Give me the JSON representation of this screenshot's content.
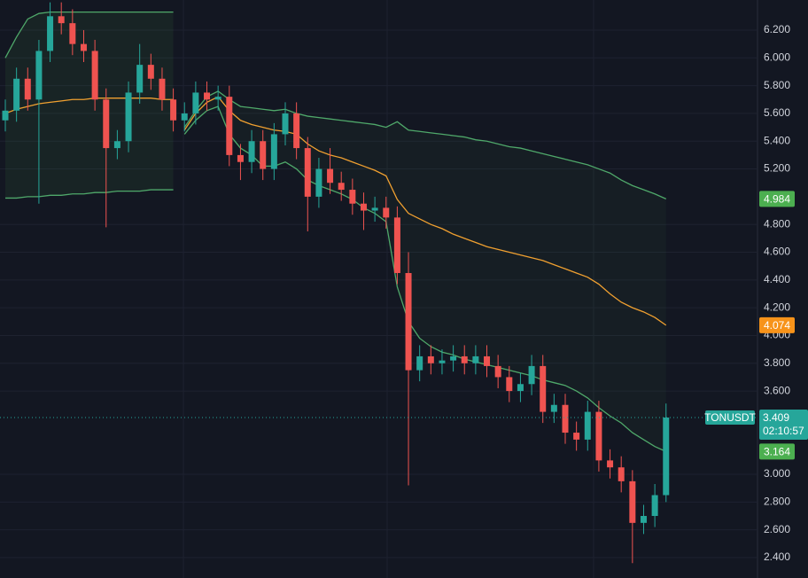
{
  "chart_data": {
    "type": "candlestick",
    "symbol": "TONUSDT",
    "last_price": 3.409,
    "countdown": "02:10:57",
    "last_color": "#26a69a",
    "up_color": "#26a69a",
    "down_color": "#ef5350",
    "open": [
      5.55,
      5.62,
      5.85,
      5.7,
      6.05,
      6.3,
      6.25,
      6.1,
      6.05,
      5.7,
      5.35,
      5.4,
      5.75,
      5.95,
      5.85,
      5.7,
      5.55,
      5.6,
      5.75,
      5.7,
      5.72,
      5.3,
      5.25,
      5.4,
      5.2,
      5.45,
      5.6,
      5.35,
      5.0,
      5.2,
      5.1,
      5.05,
      4.95,
      4.9,
      4.92,
      4.85,
      4.45,
      3.75,
      3.85,
      3.8,
      3.82,
      3.85,
      3.8,
      3.85,
      3.78,
      3.7,
      3.6,
      3.65,
      3.78,
      3.45,
      3.5,
      3.3,
      3.25,
      3.45,
      3.1,
      3.05,
      2.95,
      2.65,
      2.7,
      2.85
    ],
    "high": [
      5.7,
      5.93,
      5.93,
      6.13,
      6.4,
      6.4,
      6.35,
      6.2,
      6.13,
      5.78,
      5.48,
      5.83,
      6.1,
      6.03,
      5.93,
      5.78,
      5.68,
      5.83,
      5.83,
      5.8,
      5.8,
      5.38,
      5.48,
      5.48,
      5.53,
      5.68,
      5.68,
      5.43,
      5.28,
      5.35,
      5.18,
      5.13,
      5.03,
      5.0,
      5.0,
      4.93,
      4.6,
      3.93,
      3.93,
      3.9,
      3.93,
      3.93,
      3.93,
      3.93,
      3.86,
      3.78,
      3.73,
      3.86,
      3.86,
      3.58,
      3.58,
      3.38,
      3.53,
      3.53,
      3.18,
      3.13,
      3.03,
      2.78,
      2.93,
      3.51
    ],
    "low": [
      5.47,
      5.54,
      5.62,
      4.95,
      5.97,
      6.17,
      6.02,
      5.97,
      5.62,
      4.78,
      5.27,
      5.32,
      5.67,
      5.77,
      5.62,
      5.47,
      5.47,
      5.52,
      5.62,
      5.62,
      5.22,
      5.12,
      5.17,
      5.12,
      5.12,
      5.37,
      5.27,
      4.75,
      4.92,
      5.02,
      4.97,
      4.87,
      4.76,
      4.82,
      4.77,
      4.37,
      2.92,
      3.67,
      3.72,
      3.72,
      3.74,
      3.72,
      3.72,
      3.7,
      3.62,
      3.52,
      3.52,
      3.57,
      3.37,
      3.37,
      3.22,
      3.17,
      3.17,
      3.02,
      2.97,
      2.87,
      2.36,
      2.57,
      2.62,
      2.8
    ],
    "close": [
      5.62,
      5.85,
      5.7,
      6.05,
      6.3,
      6.25,
      6.1,
      6.05,
      5.7,
      5.35,
      5.4,
      5.75,
      5.95,
      5.85,
      5.7,
      5.55,
      5.6,
      5.75,
      5.7,
      5.72,
      5.3,
      5.25,
      5.4,
      5.2,
      5.45,
      5.6,
      5.35,
      5.0,
      5.2,
      5.1,
      5.05,
      4.95,
      4.9,
      4.92,
      4.85,
      4.45,
      3.75,
      3.85,
      3.8,
      3.82,
      3.85,
      3.8,
      3.85,
      3.78,
      3.7,
      3.6,
      3.65,
      3.78,
      3.45,
      3.5,
      3.3,
      3.25,
      3.45,
      3.1,
      3.05,
      2.95,
      2.65,
      2.7,
      2.85,
      3.409
    ],
    "bands": [
      {
        "upper": {
          "color": "#4fa86a",
          "values": [
            6.0,
            6.15,
            6.28,
            6.32,
            6.33,
            6.33,
            6.33,
            6.33,
            6.33,
            6.33,
            6.33,
            6.33,
            6.33,
            6.33,
            6.33,
            6.33,
            null,
            null,
            null,
            null,
            null,
            null,
            null,
            null,
            null,
            null,
            null,
            null,
            null,
            null,
            null,
            null,
            null,
            null,
            null,
            null,
            null,
            null,
            null,
            null,
            null,
            null,
            null,
            null,
            null,
            null,
            null,
            null,
            null,
            null,
            null,
            null,
            null,
            null,
            null,
            null,
            null,
            null,
            null,
            null
          ]
        },
        "middle": {
          "color": "#f0a030",
          "values": [
            5.6,
            5.63,
            5.65,
            5.67,
            5.68,
            5.69,
            5.7,
            5.7,
            5.71,
            5.71,
            5.71,
            5.71,
            5.71,
            5.71,
            5.7,
            5.7,
            null,
            null,
            null,
            null,
            null,
            null,
            null,
            null,
            null,
            null,
            null,
            null,
            null,
            null,
            null,
            null,
            null,
            null,
            null,
            null,
            null,
            null,
            null,
            null,
            null,
            null,
            null,
            null,
            null,
            null,
            null,
            null,
            null,
            null,
            null,
            null,
            null,
            null,
            null,
            null,
            null,
            null,
            null,
            null
          ]
        },
        "lower": {
          "color": "#4fa86a",
          "values": [
            4.99,
            4.99,
            5.0,
            5.0,
            5.01,
            5.01,
            5.02,
            5.02,
            5.03,
            5.03,
            5.04,
            5.04,
            5.04,
            5.05,
            5.05,
            5.05,
            null,
            null,
            null,
            null,
            null,
            null,
            null,
            null,
            null,
            null,
            null,
            null,
            null,
            null,
            null,
            null,
            null,
            null,
            null,
            null,
            null,
            null,
            null,
            null,
            null,
            null,
            null,
            null,
            null,
            null,
            null,
            null,
            null,
            null,
            null,
            null,
            null,
            null,
            null,
            null,
            null,
            null,
            null,
            null
          ]
        }
      },
      {
        "upper": {
          "color": "#4fa86a",
          "values": [
            null,
            null,
            null,
            null,
            null,
            null,
            null,
            null,
            null,
            null,
            null,
            null,
            null,
            null,
            null,
            null,
            5.5,
            5.62,
            5.72,
            5.76,
            5.7,
            5.65,
            5.64,
            5.63,
            5.62,
            5.63,
            5.6,
            5.58,
            5.57,
            5.56,
            5.55,
            5.54,
            5.53,
            5.52,
            5.5,
            5.54,
            5.48,
            5.47,
            5.46,
            5.45,
            5.44,
            5.43,
            5.41,
            5.4,
            5.38,
            5.36,
            5.35,
            5.33,
            5.31,
            5.29,
            5.27,
            5.25,
            5.23,
            5.2,
            5.17,
            5.12,
            5.08,
            5.05,
            5.02,
            4.984
          ]
        },
        "middle": {
          "color": "#f0a030",
          "values": [
            null,
            null,
            null,
            null,
            null,
            null,
            null,
            null,
            null,
            null,
            null,
            null,
            null,
            null,
            null,
            null,
            5.48,
            5.6,
            5.68,
            5.72,
            5.62,
            5.55,
            5.52,
            5.5,
            5.48,
            5.47,
            5.45,
            5.38,
            5.33,
            5.3,
            5.28,
            5.25,
            5.22,
            5.19,
            5.15,
            4.98,
            4.88,
            4.84,
            4.8,
            4.77,
            4.73,
            4.7,
            4.67,
            4.64,
            4.62,
            4.6,
            4.58,
            4.56,
            4.54,
            4.51,
            4.48,
            4.45,
            4.42,
            4.37,
            4.3,
            4.24,
            4.2,
            4.17,
            4.13,
            4.074
          ]
        },
        "lower": {
          "color": "#4fa86a",
          "values": [
            null,
            null,
            null,
            null,
            null,
            null,
            null,
            null,
            null,
            null,
            null,
            null,
            null,
            null,
            null,
            null,
            5.45,
            5.55,
            5.62,
            5.65,
            5.45,
            5.35,
            5.3,
            5.22,
            5.22,
            5.25,
            5.2,
            5.12,
            5.08,
            5.05,
            5.02,
            4.98,
            4.92,
            4.88,
            4.82,
            4.35,
            4.1,
            3.98,
            3.92,
            3.88,
            3.86,
            3.83,
            3.81,
            3.79,
            3.77,
            3.75,
            3.73,
            3.71,
            3.68,
            3.66,
            3.64,
            3.6,
            3.55,
            3.48,
            3.42,
            3.37,
            3.3,
            3.25,
            3.2,
            3.164
          ]
        }
      }
    ],
    "price_tags": [
      {
        "value": 4.984,
        "color": "#4caf50"
      },
      {
        "value": 4.074,
        "color": "#f7931a"
      },
      {
        "value": 3.164,
        "color": "#4caf50"
      }
    ],
    "ylim": [
      2.253,
      6.417
    ],
    "yticks": [
      {
        "value": 2.4,
        "label": "2.400"
      },
      {
        "value": 2.6,
        "label": "2.600"
      },
      {
        "value": 2.8,
        "label": "2.800"
      },
      {
        "value": 3.0,
        "label": "3.000"
      },
      {
        "value": 3.6,
        "label": "3.600"
      },
      {
        "value": 3.8,
        "label": "3.800"
      },
      {
        "value": 4.0,
        "label": "4.000"
      },
      {
        "value": 4.2,
        "label": "4.200"
      },
      {
        "value": 4.4,
        "label": "4.400"
      },
      {
        "value": 4.6,
        "label": "4.600"
      },
      {
        "value": 4.8,
        "label": "4.800"
      },
      {
        "value": 5.2,
        "label": "5.200"
      },
      {
        "value": 5.4,
        "label": "5.400"
      },
      {
        "value": 5.6,
        "label": "5.600"
      },
      {
        "value": 5.8,
        "label": "5.800"
      },
      {
        "value": 6.0,
        "label": "6.000"
      },
      {
        "value": 6.2,
        "label": "6.200"
      }
    ],
    "grid": true
  }
}
